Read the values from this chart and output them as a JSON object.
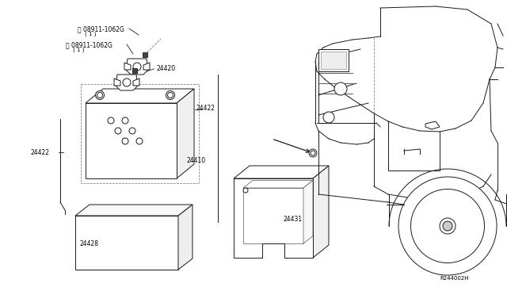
{
  "bg_color": "#ffffff",
  "line_color": "#1a1a1a",
  "gray": "#888888",
  "figsize": [
    6.4,
    3.72
  ],
  "dpi": 100,
  "labels": {
    "N1_text": "Ⓝ 08911-1062G",
    "N1_sub": "( 1 )",
    "N2_text": "Ⓝ 08911-1062G",
    "N2_sub": "( 1 )",
    "l24420": "24420",
    "l24422a": "24422",
    "l24422b": "24422",
    "l24410": "24410",
    "l24428": "24428",
    "l24431": "24431",
    "ref": "R244002H"
  },
  "fs": 5.5,
  "fs_ref": 5.0
}
